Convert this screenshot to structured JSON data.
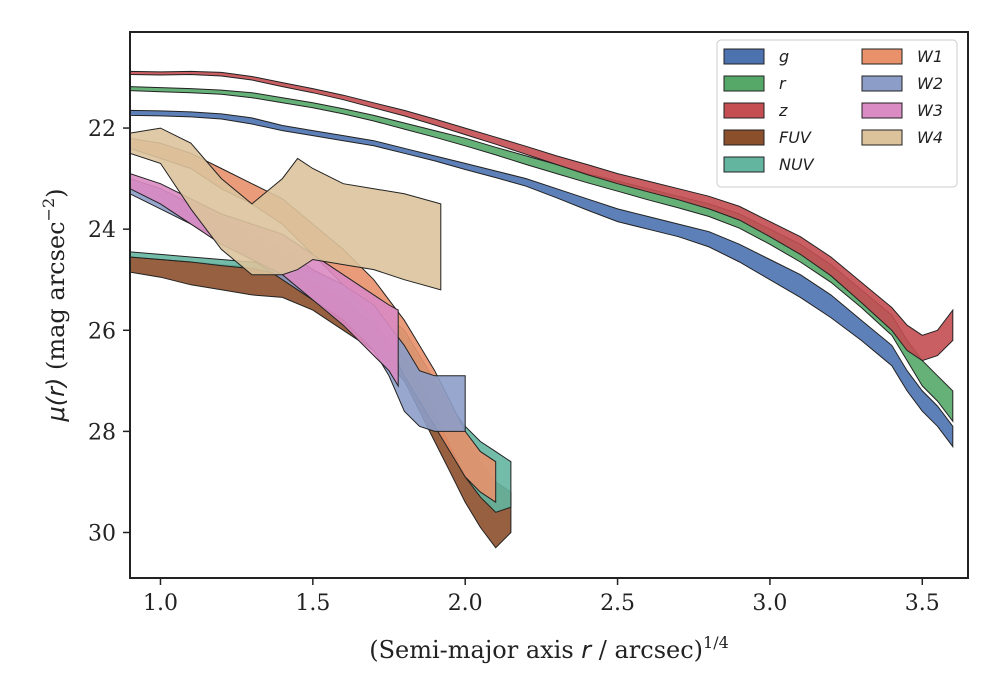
{
  "chart_data": {
    "type": "area",
    "xlabel": "(Semi-major axis r / arcsec)^{1/4}",
    "xlabel_parts": {
      "main": "(Semi-major axis ",
      "var": "r",
      "rest": " / arcsec)",
      "sup": "1/4"
    },
    "ylabel": "μ(r) (mag arcsec^{-2})",
    "ylabel_parts": {
      "var": "μ(r)",
      "rest": " (mag arcsec",
      "sup": "−2",
      "close": ")"
    },
    "xlim": [
      0.9,
      3.65
    ],
    "ylim": [
      30.9,
      20.1
    ],
    "y_inverted": true,
    "xticks": [
      1.0,
      1.5,
      2.0,
      2.5,
      3.0,
      3.5
    ],
    "xtick_labels": [
      "1.0",
      "1.5",
      "2.0",
      "2.5",
      "3.0",
      "3.5"
    ],
    "yticks": [
      22,
      24,
      26,
      28,
      30
    ],
    "ytick_labels": [
      "22",
      "24",
      "26",
      "28",
      "30"
    ],
    "grid": false,
    "legend_position": "top-right",
    "legend_columns": 2,
    "series": [
      {
        "name": "g",
        "color": "#4c72b0",
        "x": [
          0.9,
          1.0,
          1.1,
          1.2,
          1.3,
          1.4,
          1.5,
          1.6,
          1.7,
          1.8,
          1.9,
          2.0,
          2.1,
          2.2,
          2.3,
          2.4,
          2.5,
          2.6,
          2.7,
          2.8,
          2.9,
          3.0,
          3.1,
          3.2,
          3.3,
          3.4,
          3.45,
          3.5,
          3.55,
          3.6
        ],
        "lower": [
          21.65,
          21.66,
          21.68,
          21.72,
          21.8,
          21.95,
          22.05,
          22.15,
          22.25,
          22.4,
          22.55,
          22.7,
          22.85,
          23.0,
          23.2,
          23.4,
          23.6,
          23.75,
          23.9,
          24.05,
          24.3,
          24.6,
          24.9,
          25.3,
          25.8,
          26.3,
          26.8,
          27.2,
          27.5,
          27.9
        ],
        "upper": [
          21.75,
          21.76,
          21.78,
          21.82,
          21.92,
          22.05,
          22.15,
          22.25,
          22.35,
          22.5,
          22.65,
          22.82,
          22.98,
          23.15,
          23.38,
          23.62,
          23.85,
          24.0,
          24.15,
          24.35,
          24.65,
          25.0,
          25.35,
          25.75,
          26.2,
          26.7,
          27.2,
          27.6,
          27.9,
          28.3
        ]
      },
      {
        "name": "r",
        "color": "#55a868",
        "x": [
          0.9,
          1.0,
          1.1,
          1.2,
          1.3,
          1.4,
          1.5,
          1.6,
          1.7,
          1.8,
          1.9,
          2.0,
          2.1,
          2.2,
          2.3,
          2.4,
          2.5,
          2.6,
          2.7,
          2.8,
          2.9,
          3.0,
          3.1,
          3.2,
          3.3,
          3.4,
          3.45,
          3.5,
          3.55,
          3.6
        ],
        "lower": [
          21.18,
          21.2,
          21.22,
          21.25,
          21.3,
          21.4,
          21.5,
          21.62,
          21.75,
          21.9,
          22.05,
          22.2,
          22.38,
          22.55,
          22.72,
          22.9,
          23.05,
          23.2,
          23.35,
          23.5,
          23.7,
          24.0,
          24.3,
          24.7,
          25.2,
          25.7,
          26.2,
          26.6,
          26.9,
          27.2
        ],
        "upper": [
          21.26,
          21.28,
          21.3,
          21.33,
          21.4,
          21.5,
          21.6,
          21.72,
          21.86,
          22.02,
          22.18,
          22.35,
          22.53,
          22.72,
          22.9,
          23.08,
          23.25,
          23.42,
          23.58,
          23.75,
          23.98,
          24.3,
          24.65,
          25.05,
          25.55,
          26.1,
          26.6,
          27.1,
          27.4,
          27.8
        ]
      },
      {
        "name": "z",
        "color": "#c44e52",
        "x": [
          0.9,
          1.0,
          1.1,
          1.2,
          1.3,
          1.4,
          1.5,
          1.6,
          1.7,
          1.8,
          1.9,
          2.0,
          2.1,
          2.2,
          2.3,
          2.4,
          2.5,
          2.6,
          2.7,
          2.8,
          2.9,
          3.0,
          3.1,
          3.2,
          3.3,
          3.4,
          3.45,
          3.5,
          3.55,
          3.6
        ],
        "lower": [
          20.88,
          20.89,
          20.88,
          20.9,
          20.98,
          21.1,
          21.22,
          21.35,
          21.5,
          21.65,
          21.82,
          22.0,
          22.18,
          22.36,
          22.55,
          22.72,
          22.9,
          23.05,
          23.2,
          23.35,
          23.55,
          23.85,
          24.15,
          24.55,
          25.05,
          25.55,
          25.9,
          26.1,
          26.0,
          25.6
        ],
        "upper": [
          20.94,
          20.95,
          20.94,
          20.97,
          21.05,
          21.18,
          21.3,
          21.44,
          21.6,
          21.76,
          21.94,
          22.13,
          22.32,
          22.52,
          22.72,
          22.92,
          23.1,
          23.26,
          23.42,
          23.6,
          23.82,
          24.15,
          24.5,
          24.92,
          25.45,
          26.0,
          26.4,
          26.6,
          26.5,
          26.2
        ]
      },
      {
        "name": "FUV",
        "color": "#8c4f2b",
        "x": [
          0.9,
          1.0,
          1.1,
          1.2,
          1.3,
          1.4,
          1.5,
          1.6,
          1.7,
          1.8,
          1.85,
          1.9,
          1.95,
          2.0,
          2.05,
          2.1,
          2.15
        ],
        "lower": [
          24.55,
          24.6,
          24.65,
          24.7,
          24.75,
          24.8,
          24.95,
          25.25,
          25.6,
          26.1,
          26.6,
          27.1,
          27.6,
          28.1,
          28.6,
          29.0,
          29.2
        ],
        "upper": [
          24.85,
          24.95,
          25.1,
          25.2,
          25.3,
          25.35,
          25.6,
          26.0,
          26.4,
          27.0,
          27.6,
          28.2,
          28.8,
          29.4,
          29.9,
          30.3,
          30.0
        ]
      },
      {
        "name": "NUV",
        "color": "#64b5a0",
        "x": [
          0.9,
          1.0,
          1.1,
          1.2,
          1.3,
          1.4,
          1.5,
          1.6,
          1.7,
          1.8,
          1.85,
          1.9,
          1.95,
          2.0,
          2.05,
          2.1,
          2.15
        ],
        "lower": [
          24.45,
          24.5,
          24.55,
          24.6,
          24.65,
          24.75,
          24.85,
          25.1,
          25.5,
          26.0,
          26.5,
          27.0,
          27.5,
          27.9,
          28.2,
          28.4,
          28.6
        ],
        "upper": [
          24.55,
          24.6,
          24.65,
          24.72,
          24.78,
          24.9,
          25.05,
          25.4,
          25.9,
          26.5,
          27.0,
          27.6,
          28.3,
          28.9,
          29.3,
          29.6,
          29.5
        ]
      },
      {
        "name": "W1",
        "color": "#e8916b",
        "x": [
          0.9,
          1.0,
          1.1,
          1.2,
          1.3,
          1.4,
          1.5,
          1.6,
          1.7,
          1.75,
          1.8,
          1.85,
          1.9,
          1.95,
          2.0,
          2.05,
          2.1
        ],
        "lower": [
          22.2,
          22.3,
          22.5,
          22.8,
          23.1,
          23.4,
          23.9,
          24.4,
          25.0,
          25.4,
          25.8,
          26.3,
          26.8,
          27.4,
          28.0,
          28.4,
          28.6
        ],
        "upper": [
          22.4,
          22.6,
          22.8,
          23.2,
          23.5,
          23.9,
          24.5,
          25.1,
          25.8,
          26.3,
          26.9,
          27.4,
          27.9,
          28.4,
          28.9,
          29.2,
          29.4
        ]
      },
      {
        "name": "W2",
        "color": "#8c9dc8",
        "x": [
          0.9,
          1.0,
          1.1,
          1.2,
          1.3,
          1.4,
          1.5,
          1.6,
          1.7,
          1.75,
          1.8,
          1.85,
          1.9,
          1.95,
          2.0
        ],
        "lower": [
          23.0,
          23.2,
          23.5,
          23.8,
          24.1,
          24.4,
          24.8,
          25.1,
          25.5,
          25.9,
          26.3,
          26.8,
          26.9,
          26.9,
          26.9
        ],
        "upper": [
          23.3,
          23.6,
          23.9,
          24.2,
          24.6,
          25.0,
          25.4,
          25.8,
          26.4,
          26.9,
          27.6,
          27.9,
          28.0,
          28.0,
          28.0
        ]
      },
      {
        "name": "W3",
        "color": "#da8bc3",
        "x": [
          0.9,
          1.0,
          1.1,
          1.2,
          1.3,
          1.4,
          1.5,
          1.6,
          1.7,
          1.75,
          1.78
        ],
        "lower": [
          22.9,
          23.1,
          23.4,
          23.7,
          23.9,
          24.1,
          24.5,
          24.9,
          25.3,
          25.5,
          25.6
        ],
        "upper": [
          23.2,
          23.5,
          23.9,
          24.3,
          24.6,
          24.9,
          25.4,
          25.9,
          26.5,
          26.8,
          27.1
        ]
      },
      {
        "name": "W4",
        "color": "#dcc39c",
        "x": [
          0.9,
          1.0,
          1.1,
          1.2,
          1.3,
          1.4,
          1.45,
          1.5,
          1.6,
          1.7,
          1.8,
          1.92
        ],
        "lower": [
          22.1,
          22.0,
          22.3,
          23.0,
          23.5,
          23.0,
          22.6,
          22.8,
          23.1,
          23.2,
          23.3,
          23.5
        ],
        "upper": [
          22.5,
          22.7,
          23.6,
          24.4,
          24.9,
          24.9,
          24.8,
          24.6,
          24.7,
          24.8,
          25.0,
          25.2
        ]
      }
    ]
  }
}
